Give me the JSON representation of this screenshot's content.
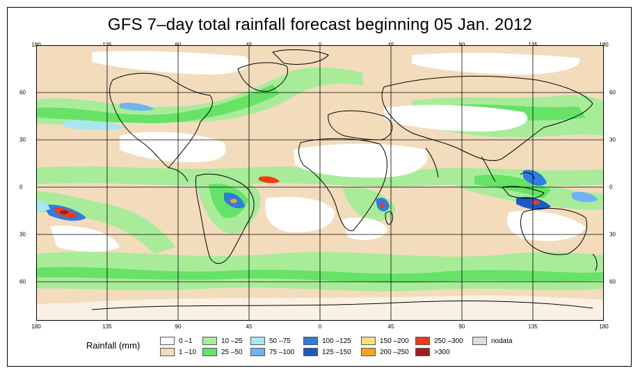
{
  "title": "GFS 7–day total rainfall forecast beginning 05 Jan. 2012",
  "axes": {
    "lon_ticks": [
      "180",
      "135",
      "90",
      "45",
      "0",
      "45",
      "90",
      "135",
      "180"
    ],
    "lat_ticks_left": [
      "60",
      "30",
      "0",
      "30",
      "60"
    ],
    "lat_ticks_right": [
      "60",
      "30",
      "0",
      "30",
      "60"
    ]
  },
  "legend": {
    "title": "Rainfall (mm)",
    "items": [
      {
        "label": "0 –1",
        "color": "#ffffff"
      },
      {
        "label": "1 –10",
        "color": "#f2dcbc"
      },
      {
        "label": "10 –25",
        "color": "#a8ec9a"
      },
      {
        "label": "25 –50",
        "color": "#66e266"
      },
      {
        "label": "50 –75",
        "color": "#a7e6f2"
      },
      {
        "label": "75 –100",
        "color": "#6fb3f5"
      },
      {
        "label": "100 –125",
        "color": "#2e7de0"
      },
      {
        "label": "125 –150",
        "color": "#1f58c8"
      },
      {
        "label": "150 –200",
        "color": "#fde07a"
      },
      {
        "label": "200 –250",
        "color": "#f9a51c"
      },
      {
        "label": "250 –300",
        "color": "#f23a17"
      },
      {
        "label": ">300",
        "color": "#a41c1c"
      },
      {
        "label": "nodata",
        "color": "#dcdcdc"
      }
    ]
  }
}
